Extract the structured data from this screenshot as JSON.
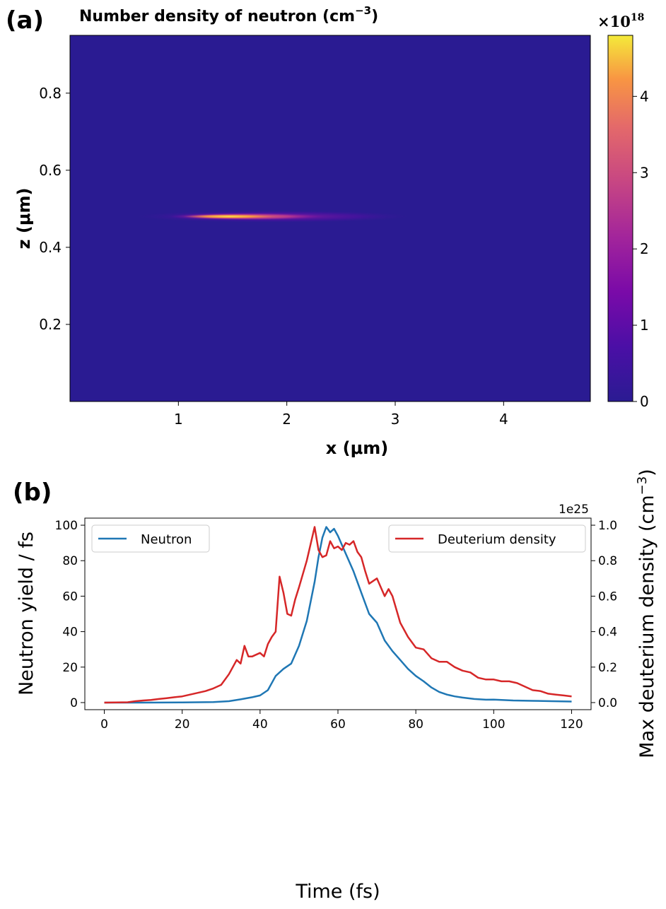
{
  "panels": [
    {
      "label": "(a)"
    },
    {
      "label": "(b)"
    }
  ],
  "chart_data": [
    {
      "type": "heatmap",
      "title": "Number density of neutron (cm",
      "title_sup": "−3",
      "title_suffix": ")",
      "xlabel": "x  (μm)",
      "ylabel": "z (μm)",
      "xlim": [
        0,
        4.8
      ],
      "ylim": [
        0,
        0.95
      ],
      "xticks": [
        1,
        2,
        3,
        4
      ],
      "xtick_labels": [
        "1",
        "2",
        "3",
        "4"
      ],
      "yticks": [
        0.2,
        0.4,
        0.6,
        0.8
      ],
      "ytick_labels": [
        "0.2",
        "0.4",
        "0.6",
        "0.8"
      ],
      "colorbar": {
        "range": [
          0,
          4.8
        ],
        "ticks": [
          0,
          1,
          2,
          3,
          4
        ],
        "tick_labels": [
          "0",
          "1",
          "2",
          "3",
          "4"
        ],
        "multiplier": "×10",
        "multiplier_exp": "18",
        "colormap": "plasma"
      },
      "background_color": "#2a1b92",
      "feature": {
        "description_visible": false,
        "z_center": 0.48,
        "x_start": 0.55,
        "x_end": 3.2,
        "peak_x": 1.5,
        "peak_value": 4.5
      }
    },
    {
      "type": "line",
      "xlabel": "Time (fs)",
      "ylabel": "Neutron yield / fs",
      "y2label": "Max deuterium density (cm",
      "y2label_sup": "−3",
      "y2label_suffix": ")",
      "xlim": [
        -5,
        125
      ],
      "ylim": [
        -4,
        104
      ],
      "y2lim": [
        -0.04,
        1.04
      ],
      "y2_offset_text": "1e25",
      "xticks": [
        0,
        20,
        40,
        60,
        80,
        100,
        120
      ],
      "xtick_labels": [
        "0",
        "20",
        "40",
        "60",
        "80",
        "100",
        "120"
      ],
      "yticks": [
        0,
        20,
        40,
        60,
        80,
        100
      ],
      "ytick_labels": [
        "0",
        "20",
        "40",
        "60",
        "80",
        "100"
      ],
      "y2ticks": [
        0.0,
        0.2,
        0.4,
        0.6,
        0.8,
        1.0
      ],
      "y2tick_labels": [
        "0.0",
        "0.2",
        "0.4",
        "0.6",
        "0.8",
        "1.0"
      ],
      "series": [
        {
          "name": "Neutron",
          "color": "#1f77b4",
          "axis": "left",
          "legend": "top-left",
          "x": [
            0,
            10,
            20,
            28,
            32,
            35,
            38,
            40,
            42,
            44,
            46,
            48,
            50,
            52,
            54,
            55,
            56,
            57,
            58,
            59,
            60,
            62,
            64,
            66,
            68,
            70,
            72,
            74,
            76,
            78,
            80,
            82,
            84,
            86,
            88,
            90,
            92,
            95,
            98,
            100,
            102,
            105,
            110,
            115,
            120
          ],
          "values": [
            0,
            0,
            0.1,
            0.3,
            0.8,
            1.8,
            3,
            4,
            7,
            15,
            19,
            22,
            32,
            46,
            68,
            82,
            93,
            99,
            96,
            98,
            94,
            84,
            74,
            62,
            50,
            45,
            35,
            29,
            24,
            19,
            15,
            12,
            8.5,
            6,
            4.5,
            3.5,
            2.8,
            2,
            1.6,
            1.7,
            1.5,
            1.2,
            1.0,
            0.8,
            0.6
          ]
        },
        {
          "name": "Deuterium density",
          "color": "#d62728",
          "axis": "right",
          "legend": "top-right",
          "x": [
            0,
            6,
            8,
            10,
            12,
            14,
            16,
            18,
            20,
            22,
            24,
            26,
            28,
            30,
            32,
            34,
            35,
            36,
            37,
            38,
            39,
            40,
            41,
            42,
            43,
            44,
            45,
            46,
            47,
            48,
            49,
            50,
            52,
            54,
            55,
            56,
            57,
            58,
            59,
            60,
            61,
            62,
            63,
            64,
            65,
            66,
            67,
            68,
            70,
            72,
            73,
            74,
            76,
            78,
            80,
            82,
            84,
            86,
            88,
            90,
            92,
            94,
            96,
            98,
            100,
            102,
            104,
            106,
            108,
            110,
            112,
            114,
            116,
            118,
            120
          ],
          "values": [
            0.0,
            0.002,
            0.008,
            0.012,
            0.015,
            0.02,
            0.025,
            0.03,
            0.035,
            0.045,
            0.055,
            0.065,
            0.08,
            0.1,
            0.16,
            0.24,
            0.22,
            0.32,
            0.26,
            0.26,
            0.27,
            0.28,
            0.26,
            0.33,
            0.37,
            0.4,
            0.71,
            0.62,
            0.5,
            0.49,
            0.58,
            0.65,
            0.8,
            0.99,
            0.86,
            0.82,
            0.83,
            0.91,
            0.87,
            0.88,
            0.86,
            0.9,
            0.89,
            0.91,
            0.85,
            0.82,
            0.74,
            0.67,
            0.7,
            0.6,
            0.64,
            0.6,
            0.45,
            0.37,
            0.31,
            0.3,
            0.25,
            0.23,
            0.23,
            0.2,
            0.18,
            0.17,
            0.14,
            0.13,
            0.13,
            0.12,
            0.12,
            0.11,
            0.09,
            0.07,
            0.065,
            0.05,
            0.045,
            0.04,
            0.035
          ]
        }
      ]
    }
  ]
}
